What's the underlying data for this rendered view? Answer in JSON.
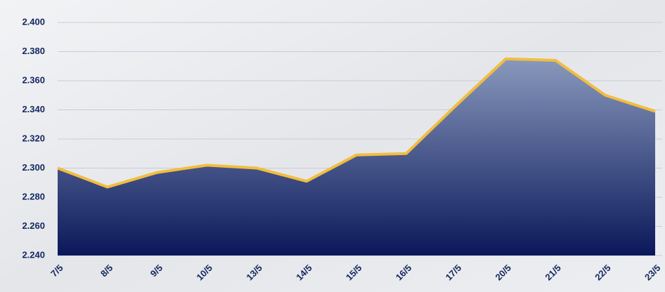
{
  "chart_data": {
    "type": "area",
    "categories": [
      "7/5",
      "8/5",
      "9/5",
      "10/5",
      "13/5",
      "14/5",
      "15/5",
      "16/5",
      "17/5",
      "20/5",
      "21/5",
      "22/5",
      "23/5"
    ],
    "values": [
      2300,
      2287,
      2297,
      2302,
      2300,
      2291,
      2309,
      2310,
      2343,
      2375,
      2374,
      2350,
      2339
    ],
    "color": "#f2bd3f",
    "area_colors": [
      "#8e9ec0",
      "#0a185a"
    ],
    "ylim": [
      2240,
      2400
    ],
    "yticks": [
      {
        "value": 2240,
        "label": "2.240"
      },
      {
        "value": 2260,
        "label": "2.260"
      },
      {
        "value": 2280,
        "label": "2.280"
      },
      {
        "value": 2300,
        "label": "2.300"
      },
      {
        "value": 2320,
        "label": "2.320"
      },
      {
        "value": 2340,
        "label": "2.340"
      },
      {
        "value": 2360,
        "label": "2.360"
      },
      {
        "value": 2380,
        "label": "2.380"
      },
      {
        "value": 2400,
        "label": "2.400"
      }
    ],
    "grid": true
  }
}
